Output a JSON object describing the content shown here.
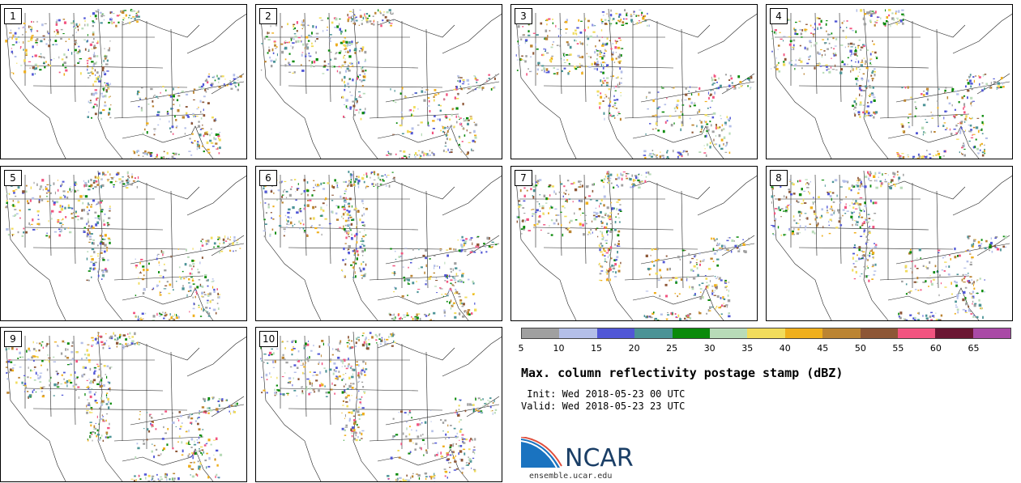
{
  "panels": [
    {
      "label": "1"
    },
    {
      "label": "2"
    },
    {
      "label": "3"
    },
    {
      "label": "4"
    },
    {
      "label": "5"
    },
    {
      "label": "6"
    },
    {
      "label": "7"
    },
    {
      "label": "8"
    },
    {
      "label": "9"
    },
    {
      "label": "10"
    }
  ],
  "colorbar": {
    "colors": [
      "#a0a0a0",
      "#b4bfe8",
      "#5157d6",
      "#4b9396",
      "#0a8a0a",
      "#b8dbb8",
      "#f1dc5c",
      "#efaf1c",
      "#bb8432",
      "#8d5636",
      "#f25480",
      "#6b1733",
      "#a94aa6"
    ],
    "ticks": [
      "5",
      "10",
      "15",
      "20",
      "25",
      "30",
      "35",
      "40",
      "45",
      "50",
      "55",
      "60",
      "65"
    ]
  },
  "title": "Max. column reflectivity postage stamp (dBZ)",
  "init_text": " Init: Wed 2018-05-23 00 UTC",
  "valid_text": "Valid: Wed 2018-05-23 23 UTC",
  "logo_text": "NCAR",
  "website": "ensemble.ucar.edu"
}
